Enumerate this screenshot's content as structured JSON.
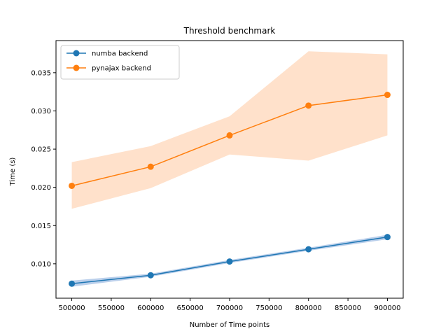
{
  "chart_data": {
    "type": "line",
    "title": "Threshold benchmark",
    "xlabel": "Number of Time points",
    "ylabel": "Time (s)",
    "xlim": [
      480000,
      920000
    ],
    "ylim": [
      0.0055,
      0.0392
    ],
    "xticks": [
      500000,
      550000,
      600000,
      650000,
      700000,
      750000,
      800000,
      850000,
      900000
    ],
    "xtick_labels": [
      "500000",
      "550000",
      "600000",
      "650000",
      "700000",
      "750000",
      "800000",
      "850000",
      "900000"
    ],
    "yticks": [
      0.01,
      0.015,
      0.02,
      0.025,
      0.03,
      0.035
    ],
    "ytick_labels": [
      "0.010",
      "0.015",
      "0.020",
      "0.025",
      "0.030",
      "0.035"
    ],
    "grid": false,
    "legend_position": "top-left",
    "x": [
      500000,
      600000,
      700000,
      800000,
      900000
    ],
    "series": [
      {
        "name": "numba backend",
        "color": "#1f77b4",
        "band_color": "#aec7e8",
        "values": [
          0.0074,
          0.0085,
          0.0103,
          0.0119,
          0.0135
        ],
        "lower": [
          0.007,
          0.0083,
          0.0101,
          0.0117,
          0.0132
        ],
        "upper": [
          0.0078,
          0.0087,
          0.0105,
          0.0121,
          0.0138
        ]
      },
      {
        "name": "pynajax backend",
        "color": "#ff7f0e",
        "band_color": "#ffdcc2",
        "values": [
          0.0202,
          0.0227,
          0.0268,
          0.0307,
          0.0321
        ],
        "lower": [
          0.0172,
          0.0199,
          0.0243,
          0.0235,
          0.0268
        ],
        "upper": [
          0.0233,
          0.0254,
          0.0293,
          0.0378,
          0.0374
        ]
      }
    ]
  }
}
